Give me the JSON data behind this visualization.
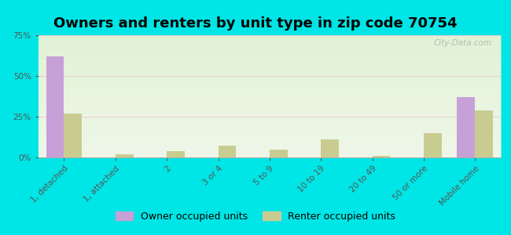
{
  "title": "Owners and renters by unit type in zip code 70754",
  "categories": [
    "1, detached",
    "1, attached",
    "2",
    "3 or 4",
    "5 to 9",
    "10 to 19",
    "20 to 49",
    "50 or more",
    "Mobile home"
  ],
  "owner_values": [
    62,
    0,
    0,
    0,
    0,
    0,
    0,
    0,
    37
  ],
  "renter_values": [
    27,
    2,
    4,
    7,
    5,
    11,
    1,
    15,
    29
  ],
  "owner_color": "#c8a0d8",
  "renter_color": "#c8cc90",
  "bg_color": "#00e5e5",
  "plot_bg_color": "#eaf5e2",
  "ylim": [
    0,
    75
  ],
  "yticks": [
    0,
    25,
    50,
    75
  ],
  "ytick_labels": [
    "0%",
    "25%",
    "50%",
    "75%"
  ],
  "bar_width": 0.35,
  "legend_owner": "Owner occupied units",
  "legend_renter": "Renter occupied units",
  "watermark": "City-Data.com",
  "title_fontsize": 13,
  "tick_fontsize": 7.5,
  "legend_fontsize": 9
}
